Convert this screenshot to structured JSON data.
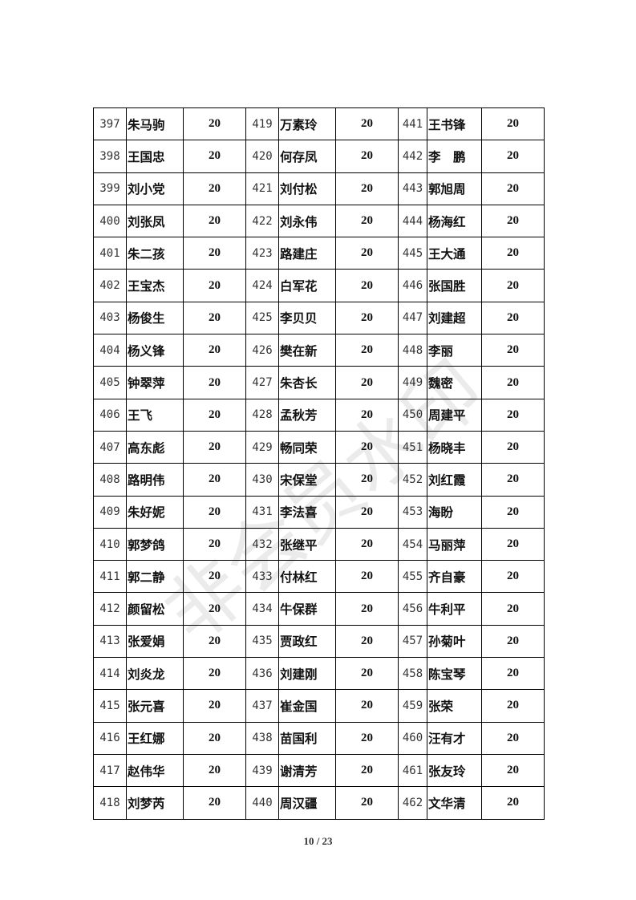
{
  "table": {
    "rows": [
      [
        [
          "397",
          "朱马驹",
          "20"
        ],
        [
          "419",
          "万素玲",
          "20"
        ],
        [
          "441",
          "王书锋",
          "20"
        ]
      ],
      [
        [
          "398",
          "王国忠",
          "20"
        ],
        [
          "420",
          "何存凤",
          "20"
        ],
        [
          "442",
          "李　鹏",
          "20"
        ]
      ],
      [
        [
          "399",
          "刘小党",
          "20"
        ],
        [
          "421",
          "刘付松",
          "20"
        ],
        [
          "443",
          "郭旭周",
          "20"
        ]
      ],
      [
        [
          "400",
          "刘张凤",
          "20"
        ],
        [
          "422",
          "刘永伟",
          "20"
        ],
        [
          "444",
          "杨海红",
          "20"
        ]
      ],
      [
        [
          "401",
          "朱二孩",
          "20"
        ],
        [
          "423",
          "路建庄",
          "20"
        ],
        [
          "445",
          "王大通",
          "20"
        ]
      ],
      [
        [
          "402",
          "王宝杰",
          "20"
        ],
        [
          "424",
          "白军花",
          "20"
        ],
        [
          "446",
          "张国胜",
          "20"
        ]
      ],
      [
        [
          "403",
          "杨俊生",
          "20"
        ],
        [
          "425",
          "李贝贝",
          "20"
        ],
        [
          "447",
          "刘建超",
          "20"
        ]
      ],
      [
        [
          "404",
          "杨义锋",
          "20"
        ],
        [
          "426",
          "樊在新",
          "20"
        ],
        [
          "448",
          "李丽",
          "20"
        ]
      ],
      [
        [
          "405",
          "钟翠萍",
          "20"
        ],
        [
          "427",
          "朱杏长",
          "20"
        ],
        [
          "449",
          "魏密",
          "20"
        ]
      ],
      [
        [
          "406",
          "王飞",
          "20"
        ],
        [
          "428",
          "孟秋芳",
          "20"
        ],
        [
          "450",
          "周建平",
          "20"
        ]
      ],
      [
        [
          "407",
          "高东彪",
          "20"
        ],
        [
          "429",
          "畅同荣",
          "20"
        ],
        [
          "451",
          "杨晓丰",
          "20"
        ]
      ],
      [
        [
          "408",
          "路明伟",
          "20"
        ],
        [
          "430",
          "宋保堂",
          "20"
        ],
        [
          "452",
          "刘红霞",
          "20"
        ]
      ],
      [
        [
          "409",
          "朱好妮",
          "20"
        ],
        [
          "431",
          "李法喜",
          "20"
        ],
        [
          "453",
          "海盼",
          "20"
        ]
      ],
      [
        [
          "410",
          "郭梦鸽",
          "20"
        ],
        [
          "432",
          "张继平",
          "20"
        ],
        [
          "454",
          "马丽萍",
          "20"
        ]
      ],
      [
        [
          "411",
          "郭二静",
          "20"
        ],
        [
          "433",
          "付林红",
          "20"
        ],
        [
          "455",
          "齐自豪",
          "20"
        ]
      ],
      [
        [
          "412",
          "颜留松",
          "20"
        ],
        [
          "434",
          "牛保群",
          "20"
        ],
        [
          "456",
          "牛利平",
          "20"
        ]
      ],
      [
        [
          "413",
          "张爱娟",
          "20"
        ],
        [
          "435",
          "贾政红",
          "20"
        ],
        [
          "457",
          "孙菊叶",
          "20"
        ]
      ],
      [
        [
          "414",
          "刘炎龙",
          "20"
        ],
        [
          "436",
          "刘建刚",
          "20"
        ],
        [
          "458",
          "陈宝琴",
          "20"
        ]
      ],
      [
        [
          "415",
          "张元喜",
          "20"
        ],
        [
          "437",
          "崔金国",
          "20"
        ],
        [
          "459",
          "张荣",
          "20"
        ]
      ],
      [
        [
          "416",
          "王红娜",
          "20"
        ],
        [
          "438",
          "苗国利",
          "20"
        ],
        [
          "460",
          "汪有才",
          "20"
        ]
      ],
      [
        [
          "417",
          "赵伟华",
          "20"
        ],
        [
          "439",
          "谢清芳",
          "20"
        ],
        [
          "461",
          "张友玲",
          "20"
        ]
      ],
      [
        [
          "418",
          "刘梦芮",
          "20"
        ],
        [
          "440",
          "周汉疆",
          "20"
        ],
        [
          "462",
          "文华清",
          "20"
        ]
      ]
    ]
  },
  "watermark": "非会员水印",
  "footer": {
    "page_number": "10 / 23"
  }
}
